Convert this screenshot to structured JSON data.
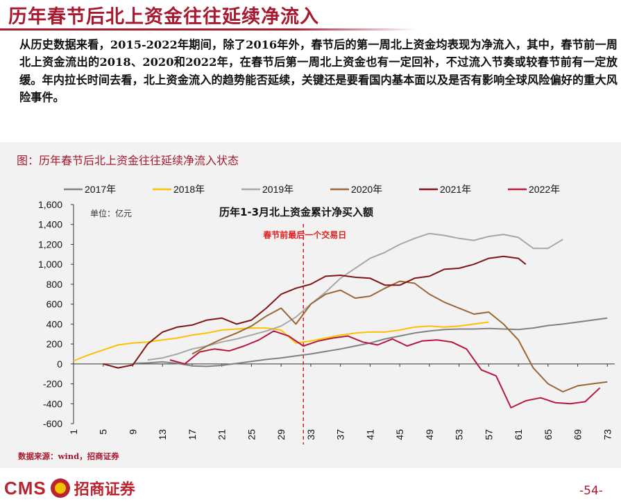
{
  "header": {
    "title": "历年春节后北上资金往往延续净流入",
    "paragraph": "从历史数据来看，2015-2022年期间，除了2016年外，春节后的第一周北上资金均表现为净流入，其中，春节前一周北上资金流出的2018、2020和2022年，在春节后第一周北上资金也有一定回补，不过流入节奏或较春节前有一定放缓。年内拉长时间去看，北上资金流入的趋势能否延续，关键还是要看国内基本面以及是否有影响全球风险偏好的重大风险事件。"
  },
  "figure": {
    "caption": "图：历年春节后北上资金往往延续净流入状态",
    "source": "数据来源：wind，招商证券"
  },
  "footer": {
    "logo_text": "CMS",
    "logo_cn": "招商证券",
    "page_number": "-54-"
  },
  "chart_data": {
    "type": "line",
    "title": "历年1-3月北上资金累计净买入额",
    "unit_label": "单位：亿元",
    "annotation": "春节前最后一个交易日",
    "annotation_x": 32,
    "ylim": [
      -600,
      1600
    ],
    "y_ticks": [
      -600,
      -400,
      -200,
      0,
      200,
      400,
      600,
      800,
      1000,
      1200,
      1400,
      1600
    ],
    "y_tick_labels": [
      "-600",
      "-400",
      "-200",
      "0",
      "200",
      "400",
      "600",
      "800",
      "1,000",
      "1,200",
      "1,400",
      "1,600"
    ],
    "xlim": [
      1,
      74
    ],
    "x_ticks": [
      1,
      5,
      9,
      13,
      17,
      21,
      25,
      29,
      33,
      37,
      41,
      45,
      49,
      53,
      57,
      61,
      65,
      69,
      73
    ],
    "legend_position": "top",
    "grid": false,
    "series": [
      {
        "name": "2017年",
        "color": "#808080",
        "x": [
          9,
          11,
          13,
          15,
          17,
          19,
          21,
          23,
          25,
          27,
          29,
          31,
          33,
          35,
          37,
          39,
          41,
          43,
          45,
          47,
          49,
          51,
          53,
          55,
          57,
          59,
          61,
          63,
          65,
          67,
          69,
          71,
          73
        ],
        "y": [
          5,
          10,
          20,
          5,
          -20,
          -25,
          -15,
          5,
          25,
          45,
          60,
          80,
          100,
          125,
          150,
          180,
          210,
          250,
          280,
          310,
          330,
          345,
          350,
          350,
          355,
          350,
          345,
          360,
          385,
          400,
          420,
          440,
          460
        ]
      },
      {
        "name": "2018年",
        "color": "#ffc000",
        "x": [
          1,
          3,
          5,
          7,
          9,
          11,
          13,
          15,
          17,
          19,
          21,
          23,
          25,
          27,
          29,
          31,
          33,
          35,
          37,
          39,
          41,
          43,
          45,
          47,
          49,
          51,
          53,
          55,
          57
        ],
        "y": [
          30,
          90,
          140,
          190,
          210,
          220,
          240,
          260,
          290,
          310,
          340,
          350,
          360,
          360,
          340,
          210,
          230,
          260,
          290,
          310,
          320,
          320,
          340,
          370,
          380,
          370,
          380,
          400,
          420
        ]
      },
      {
        "name": "2019年",
        "color": "#a6a6a6",
        "x": [
          11,
          13,
          15,
          17,
          19,
          21,
          23,
          25,
          27,
          29,
          31,
          33,
          35,
          37,
          39,
          41,
          43,
          45,
          47,
          49,
          51,
          53,
          55,
          57,
          59,
          61,
          63,
          65,
          67
        ],
        "y": [
          40,
          60,
          100,
          150,
          180,
          220,
          250,
          290,
          330,
          380,
          470,
          600,
          720,
          860,
          960,
          1060,
          1120,
          1200,
          1260,
          1310,
          1290,
          1260,
          1240,
          1280,
          1300,
          1270,
          1160,
          1160,
          1250
        ]
      },
      {
        "name": "2020年",
        "color": "#996633",
        "x": [
          17,
          19,
          21,
          23,
          25,
          27,
          29,
          31,
          33,
          35,
          37,
          39,
          41,
          43,
          45,
          47,
          49,
          51,
          53,
          55,
          57,
          59,
          61,
          63,
          65,
          67,
          69,
          71,
          73
        ],
        "y": [
          100,
          180,
          250,
          310,
          380,
          480,
          560,
          400,
          600,
          700,
          740,
          660,
          680,
          760,
          830,
          810,
          700,
          620,
          560,
          500,
          520,
          400,
          240,
          -40,
          -200,
          -280,
          -220,
          -200,
          -180
        ]
      },
      {
        "name": "2021年",
        "color": "#7f1416",
        "x": [
          5,
          7,
          9,
          11,
          13,
          15,
          17,
          19,
          21,
          23,
          25,
          27,
          29,
          31,
          33,
          35,
          37,
          39,
          41,
          43,
          45,
          47,
          49,
          51,
          53,
          55,
          57,
          59,
          61,
          62
        ],
        "y": [
          0,
          -40,
          -10,
          200,
          320,
          370,
          390,
          440,
          460,
          400,
          440,
          560,
          700,
          760,
          800,
          880,
          890,
          870,
          860,
          790,
          790,
          860,
          880,
          950,
          960,
          1000,
          1060,
          1080,
          1060,
          1000
        ]
      },
      {
        "name": "2022年",
        "color": "#b5183c",
        "x": [
          14,
          16,
          18,
          20,
          22,
          24,
          26,
          28,
          30,
          32,
          34,
          36,
          38,
          40,
          42,
          44,
          46,
          48,
          50,
          52,
          54,
          56,
          58,
          60,
          62,
          64,
          66,
          68,
          70,
          72
        ],
        "y": [
          40,
          0,
          120,
          150,
          130,
          180,
          240,
          330,
          280,
          180,
          230,
          260,
          280,
          220,
          190,
          250,
          180,
          230,
          240,
          220,
          150,
          -60,
          -120,
          -440,
          -370,
          -340,
          -390,
          -400,
          -380,
          -240
        ]
      }
    ]
  }
}
